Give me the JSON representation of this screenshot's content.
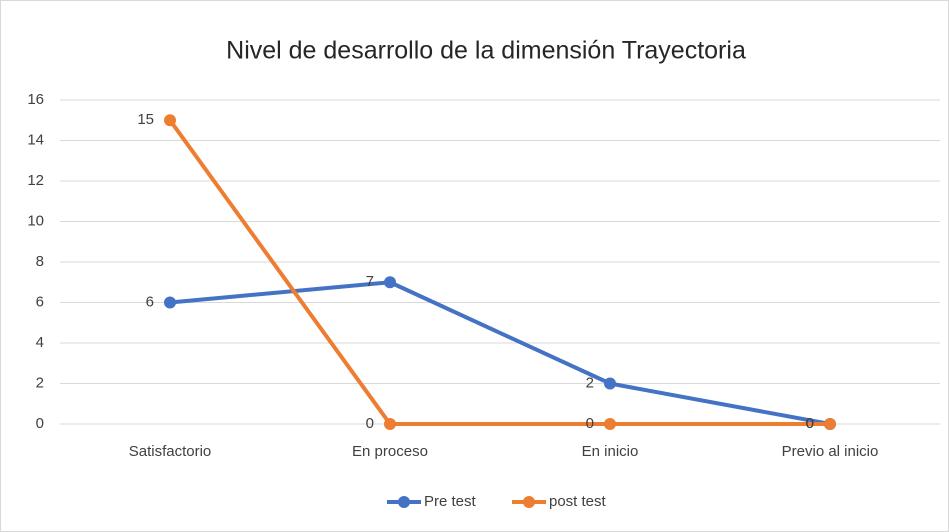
{
  "chart_data": {
    "type": "line",
    "title": "Nivel de desarrollo de la dimensión Trayectoria",
    "categories": [
      "Satisfactorio",
      "En proceso",
      "En inicio",
      "Previo al inicio"
    ],
    "series": [
      {
        "name": "Pre test",
        "color": "#4472c4",
        "values": [
          6,
          7,
          2,
          0
        ]
      },
      {
        "name": "post test",
        "color": "#ed7d31",
        "values": [
          15,
          0,
          0,
          0
        ]
      }
    ],
    "ylim": [
      0,
      16
    ],
    "yticks": [
      0,
      2,
      4,
      6,
      8,
      10,
      12,
      14,
      16
    ],
    "grid": true,
    "legend": "bottom"
  }
}
